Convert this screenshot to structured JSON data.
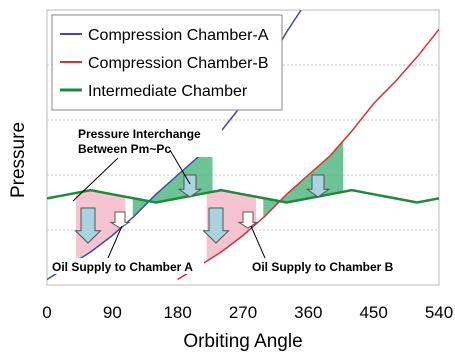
{
  "chart_data": {
    "type": "line",
    "xlabel": "Orbiting Angle",
    "ylabel": "Pressure",
    "xlim": [
      0,
      540
    ],
    "xticks": [
      "0",
      "90",
      "180",
      "270",
      "360",
      "450",
      "540"
    ],
    "grid": "horizontal dotted",
    "legend_position": "top-left",
    "series": [
      {
        "name": "Compression Chamber-A",
        "color": "#3f48b5",
        "x": [
          0,
          30,
          60,
          90,
          120,
          150,
          180,
          210,
          240,
          270,
          300,
          330,
          350
        ],
        "y": [
          0.02,
          0.07,
          0.12,
          0.18,
          0.25,
          0.33,
          0.4,
          0.47,
          0.56,
          0.66,
          0.78,
          0.92,
          1.0
        ]
      },
      {
        "name": "Compression Chamber-B",
        "color": "#e0302d",
        "x": [
          180,
          210,
          240,
          270,
          300,
          330,
          360,
          390,
          420,
          450,
          480,
          510,
          540
        ],
        "y": [
          0.02,
          0.07,
          0.12,
          0.18,
          0.25,
          0.33,
          0.4,
          0.47,
          0.56,
          0.66,
          0.74,
          0.83,
          0.93
        ]
      },
      {
        "name": "Intermediate Chamber",
        "color": "#1e8a3c",
        "x": [
          0,
          30,
          60,
          90,
          120,
          150,
          180,
          210,
          240,
          270,
          300,
          330,
          360,
          390,
          420,
          450,
          480,
          510,
          540
        ],
        "y": [
          0.315,
          0.33,
          0.345,
          0.33,
          0.315,
          0.3,
          0.315,
          0.33,
          0.345,
          0.33,
          0.315,
          0.3,
          0.315,
          0.33,
          0.345,
          0.33,
          0.315,
          0.3,
          0.315
        ]
      }
    ],
    "annotations": [
      {
        "text": "Pressure Interchange",
        "line2": "Between Pm~Pc"
      },
      {
        "text": "Oil Supply to Chamber A"
      },
      {
        "text": "Oil Supply to Chamber B"
      }
    ]
  }
}
